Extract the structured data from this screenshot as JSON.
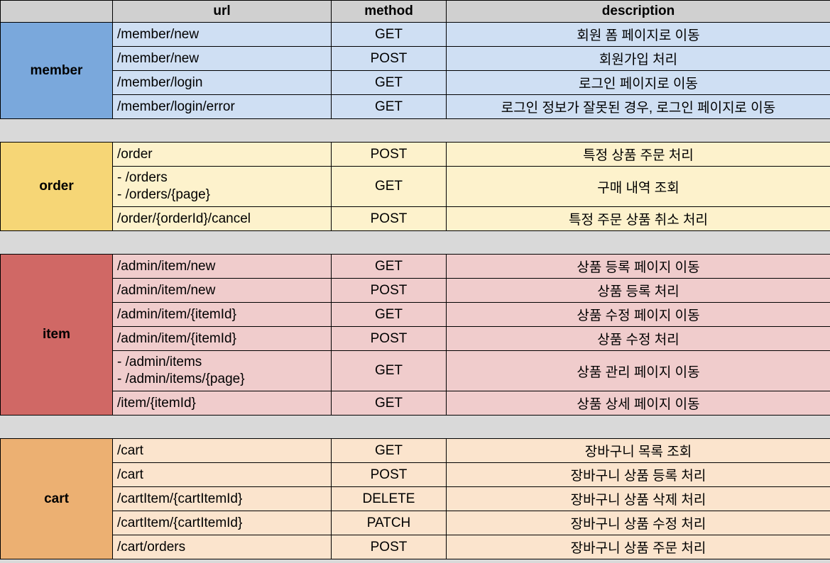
{
  "headers": {
    "group": "",
    "url": "url",
    "method": "method",
    "description": "description"
  },
  "groups": {
    "member": {
      "name": "member",
      "rows": [
        {
          "url": "/member/new",
          "method": "GET",
          "description": "회원 폼 페이지로 이동"
        },
        {
          "url": "/member/new",
          "method": "POST",
          "description": "회원가입 처리"
        },
        {
          "url": "/member/login",
          "method": "GET",
          "description": "로그인 페이지로 이동"
        },
        {
          "url": "/member/login/error",
          "method": "GET",
          "description": "로그인 정보가 잘못된 경우, 로그인 페이지로 이동"
        }
      ]
    },
    "order": {
      "name": "order",
      "rows": [
        {
          "url": "/order",
          "method": "POST",
          "description": "특정 상품 주문 처리"
        },
        {
          "url_lines": [
            "- /orders",
            "- /orders/{page}"
          ],
          "method": "GET",
          "description": "구매 내역 조회"
        },
        {
          "url": "/order/{orderId}/cancel",
          "method": "POST",
          "description": "특정 주문 상품 취소 처리"
        }
      ]
    },
    "item": {
      "name": "item",
      "rows": [
        {
          "url": "/admin/item/new",
          "method": "GET",
          "description": "상품 등록 페이지 이동"
        },
        {
          "url": "/admin/item/new",
          "method": "POST",
          "description": "상품 등록 처리"
        },
        {
          "url": "/admin/item/{itemId}",
          "method": "GET",
          "description": "상품 수정 페이지 이동"
        },
        {
          "url": "/admin/item/{itemId}",
          "method": "POST",
          "description": "상품 수정 처리"
        },
        {
          "url_lines": [
            "- /admin/items",
            "- /admin/items/{page}"
          ],
          "method": "GET",
          "description": "상품 관리 페이지 이동"
        },
        {
          "url": "/item/{itemId}",
          "method": "GET",
          "description": "상품 상세 페이지 이동"
        }
      ]
    },
    "cart": {
      "name": "cart",
      "rows": [
        {
          "url": "/cart",
          "method": "GET",
          "description": "장바구니 목록 조회"
        },
        {
          "url": "/cart",
          "method": "POST",
          "description": "장바구니 상품 등록 처리"
        },
        {
          "url": "/cartItem/{cartItemId}",
          "method": "DELETE",
          "description": "장바구니 상품 삭제 처리"
        },
        {
          "url": "/cartItem/{cartItemId}",
          "method": "PATCH",
          "description": "장바구니 상품 수정 처리"
        },
        {
          "url": "/cart/orders",
          "method": "POST",
          "description": "장바구니 상품 주문 처리"
        }
      ]
    }
  },
  "colors": {
    "header_bg": "#d0d0d0",
    "member_label": "#7aa8dc",
    "member_row": "#cfdff3",
    "order_label": "#f6d676",
    "order_row": "#fdf2cc",
    "item_label": "#d06865",
    "item_row": "#f0cccc",
    "cart_label": "#ecb072",
    "cart_row": "#fbe4cd",
    "spacer": "#d9d9d9"
  }
}
